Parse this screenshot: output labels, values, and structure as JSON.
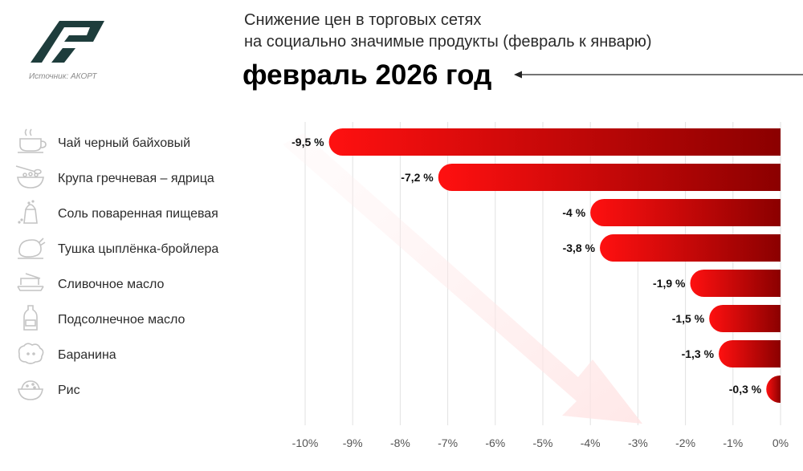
{
  "header": {
    "title_line1": "Снижение цен в торговых сетях",
    "title_line2": "на социально значимые продукты (февраль к январю)",
    "period": "февраль 2026 год",
    "source": "Источник: АКОРТ"
  },
  "colors": {
    "bar_dark": "#8b0000",
    "bar_light": "#ff1010",
    "logo": "#1e3d3c",
    "icon": "#c4c4c4",
    "grid": "#e2e2e2"
  },
  "chart_data": {
    "type": "bar",
    "orientation": "horizontal",
    "title": "Снижение цен в торговых сетях на социально значимые продукты (февраль к январю)",
    "categories": [
      "Чай черный байховый",
      "Крупа гречневая – ядрица",
      "Соль поваренная пищевая",
      "Тушка цыплёнка-бройлера",
      "Сливочное масло",
      "Подсолнечное масло",
      "Баранина",
      "Рис"
    ],
    "icons": [
      "tea-cup-icon",
      "buckwheat-bowl-icon",
      "salt-shaker-icon",
      "chicken-icon",
      "butter-dish-icon",
      "oil-bottle-icon",
      "sheep-icon",
      "rice-bowl-icon"
    ],
    "values": [
      -9.5,
      -7.2,
      -4,
      -3.8,
      -1.9,
      -1.5,
      -1.3,
      -0.3
    ],
    "value_labels": [
      "-9,5 %",
      "-7,2 %",
      "-4 %",
      "-3,8 %",
      "-1,9 %",
      "-1,5 %",
      "-1,3 %",
      "-0,3 %"
    ],
    "x_ticks": [
      -10,
      -9,
      -8,
      -7,
      -6,
      -5,
      -4,
      -3,
      -2,
      -1,
      0
    ],
    "x_tick_labels": [
      "-10%",
      "-9%",
      "-8%",
      "-7%",
      "-6%",
      "-5%",
      "-4%",
      "-3%",
      "-2%",
      "-1%",
      "0%"
    ],
    "xlim": [
      -10,
      0
    ],
    "grid": true
  }
}
